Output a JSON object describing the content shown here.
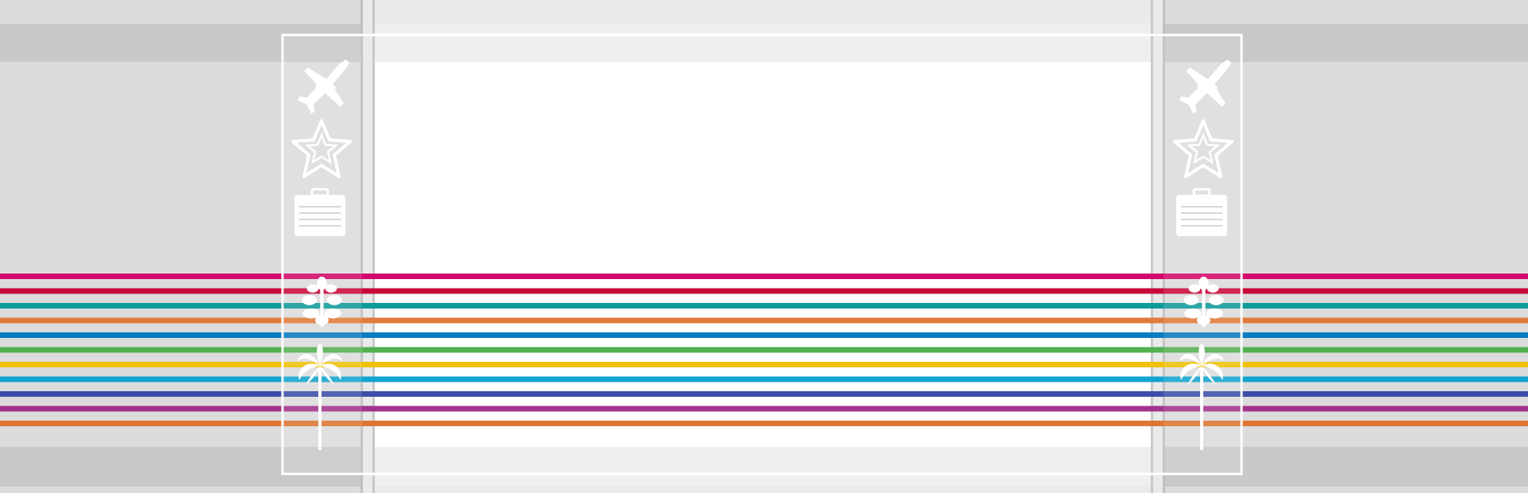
{
  "colors": {
    "background": "#dcdcdc",
    "panel_center": "#ffffff",
    "panel_side": "#e9eaea",
    "band_dark": "#c9c9ca",
    "frame": "#ffffff",
    "divider": "#c0c0c0"
  },
  "stripes": [
    {
      "name": "magenta",
      "color": "#d4086c"
    },
    {
      "name": "crimson",
      "color": "#c8093a"
    },
    {
      "name": "teal",
      "color": "#0f9a9a"
    },
    {
      "name": "orange",
      "color": "#e07a3a"
    },
    {
      "name": "blue",
      "color": "#0a7cc0"
    },
    {
      "name": "green",
      "color": "#52b04e"
    },
    {
      "name": "yellow",
      "color": "#eec10a"
    },
    {
      "name": "cyan",
      "color": "#12a3d0"
    },
    {
      "name": "indigo",
      "color": "#3d4ea6"
    },
    {
      "name": "purple",
      "color": "#a2338c"
    },
    {
      "name": "dark-orange",
      "color": "#dd7632"
    }
  ],
  "icon_columns": [
    {
      "side": "left",
      "icons": [
        "airplane-icon",
        "star-icon",
        "suitcase-icon",
        "sunflower-icon",
        "palm-tree-icon"
      ]
    },
    {
      "side": "right",
      "icons": [
        "airplane-icon",
        "star-icon",
        "suitcase-icon",
        "sunflower-icon",
        "palm-tree-icon"
      ]
    }
  ]
}
